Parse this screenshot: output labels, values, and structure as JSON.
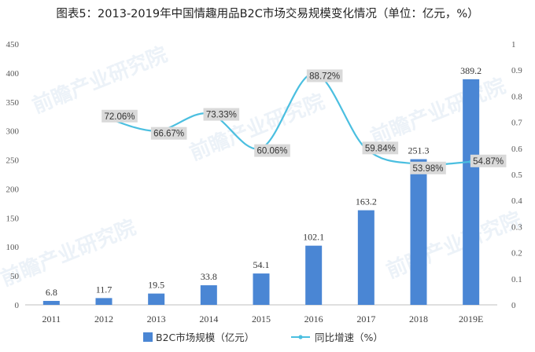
{
  "chart_data": {
    "type": "bar",
    "title": "图表5：2013-2019年中国情趣用品B2C市场交易规模变化情况（单位：亿元，%）",
    "categories": [
      "2011",
      "2012",
      "2013",
      "2014",
      "2015",
      "2016",
      "2017",
      "2018",
      "2019E"
    ],
    "series": [
      {
        "name": "B2C市场规模（亿元）",
        "type": "bar",
        "axis": "left",
        "color": "#4a86d4",
        "values": [
          6.8,
          11.7,
          19.5,
          33.8,
          54.1,
          102.1,
          163.2,
          251.3,
          389.2
        ],
        "labels": [
          "6.8",
          "11.7",
          "19.5",
          "33.8",
          "54.1",
          "102.1",
          "163.2",
          "251.3",
          "389.2"
        ]
      },
      {
        "name": "同比增速（%）",
        "type": "line",
        "axis": "right",
        "color": "#4bbfe0",
        "values": [
          null,
          0.7206,
          0.6667,
          0.7333,
          0.6006,
          0.8872,
          0.5984,
          0.5398,
          0.5487
        ],
        "labels": [
          "",
          "72.06%",
          "66.67%",
          "73.33%",
          "60.06%",
          "88.72%",
          "59.84%",
          "53.98%",
          "54.87%"
        ]
      }
    ],
    "y_left": {
      "ylim": [
        0,
        450
      ],
      "ticks": [
        0,
        50,
        100,
        150,
        200,
        250,
        300,
        350,
        400,
        450
      ],
      "tick_labels": [
        "0",
        "50",
        "100",
        "150",
        "200",
        "250",
        "300",
        "350",
        "400",
        "450"
      ]
    },
    "y_right": {
      "ylim": [
        0,
        1
      ],
      "ticks": [
        0,
        0.1,
        0.2,
        0.3,
        0.4,
        0.5,
        0.6,
        0.7,
        0.8,
        0.9,
        1
      ],
      "tick_labels": [
        "0",
        "0.1",
        "0.2",
        "0.3",
        "0.4",
        "0.5",
        "0.6",
        "0.7",
        "0.8",
        "0.9",
        "1"
      ]
    },
    "xlabel": "",
    "ylabel": "",
    "grid": false,
    "legend": "bottom",
    "watermark": "前瞻产业研究院"
  }
}
